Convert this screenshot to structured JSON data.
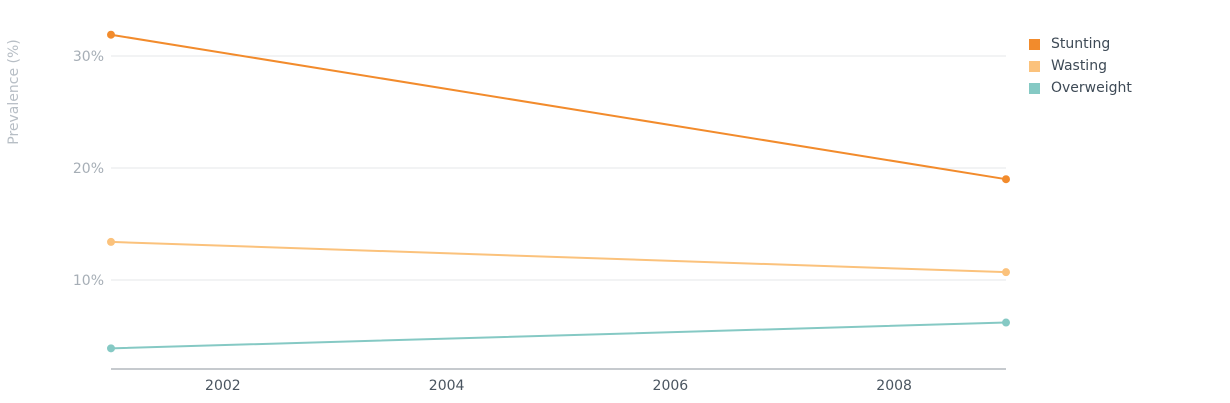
{
  "chart_data": {
    "type": "line",
    "title": "",
    "xlabel": "",
    "ylabel": "Prevalence (%)",
    "x": [
      2001,
      2009
    ],
    "xlim": [
      2001,
      2009
    ],
    "ylim": [
      2,
      32
    ],
    "x_ticks": [
      {
        "value": 2002,
        "label": "2002"
      },
      {
        "value": 2004,
        "label": "2004"
      },
      {
        "value": 2006,
        "label": "2006"
      },
      {
        "value": 2008,
        "label": "2008"
      }
    ],
    "y_ticks": [
      {
        "value": 10,
        "label": "10%"
      },
      {
        "value": 20,
        "label": "20%"
      },
      {
        "value": 30,
        "label": "30%"
      }
    ],
    "grid": true,
    "legend_position": "top-right",
    "series": [
      {
        "name": "Stunting",
        "values": [
          31.9,
          19.0
        ],
        "color": "#f28b2c"
      },
      {
        "name": "Wasting",
        "values": [
          13.4,
          10.7
        ],
        "color": "#fbc27c"
      },
      {
        "name": "Overweight",
        "values": [
          3.9,
          6.2
        ],
        "color": "#85c9c4"
      }
    ]
  }
}
